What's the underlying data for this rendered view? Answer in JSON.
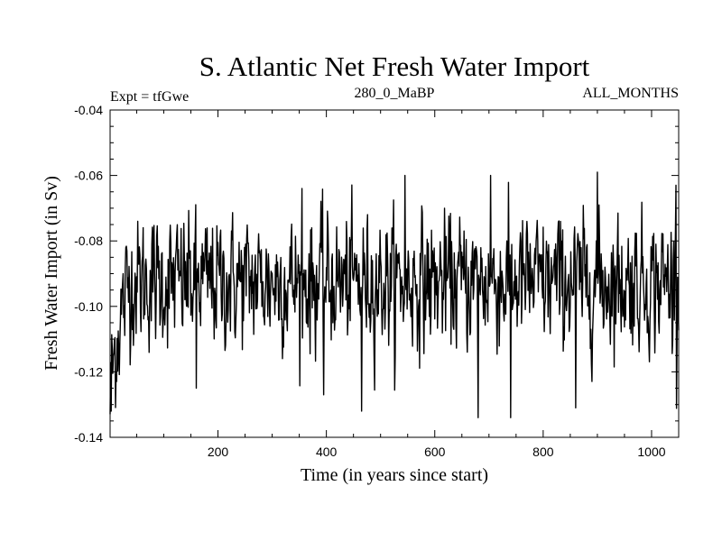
{
  "chart_data": {
    "type": "line",
    "title": "S. Atlantic Net Fresh Water Import",
    "left_label": "Expt = tfGwe",
    "center_label": "280_0_MaBP",
    "right_label": "ALL_MONTHS",
    "xlabel": "Time (in years since start)",
    "ylabel": "Fresh Water Import (in Sv)",
    "xlim": [
      1,
      1050
    ],
    "ylim": [
      -0.14,
      -0.04
    ],
    "xticks": [
      200,
      400,
      600,
      800,
      1000
    ],
    "xtick_labels": [
      "200",
      "400",
      "600",
      "800",
      "1000"
    ],
    "yticks": [
      -0.14,
      -0.12,
      -0.1,
      -0.08,
      -0.06,
      -0.04
    ],
    "ytick_labels": [
      "-0.14",
      "-0.12",
      "-0.10",
      "-0.08",
      "-0.06",
      "-0.04"
    ],
    "grid": false,
    "series": [
      {
        "name": "net fresh water import",
        "color": "#000000",
        "x_start": 1,
        "x_step": 1,
        "baseline": -0.0925,
        "noise_sd": 0.0095,
        "startup_value": -0.13,
        "startup_years": 35,
        "min": -0.134,
        "max": -0.059,
        "anomalies": [
          {
            "x": 3,
            "y": -0.132
          },
          {
            "x": 160,
            "y": -0.125
          },
          {
            "x": 355,
            "y": -0.064
          },
          {
            "x": 395,
            "y": -0.127
          },
          {
            "x": 465,
            "y": -0.132
          },
          {
            "x": 545,
            "y": -0.06
          },
          {
            "x": 680,
            "y": -0.134
          },
          {
            "x": 703,
            "y": -0.06
          },
          {
            "x": 740,
            "y": -0.134
          },
          {
            "x": 860,
            "y": -0.131
          },
          {
            "x": 900,
            "y": -0.059
          },
          {
            "x": 1045,
            "y": -0.063
          }
        ]
      }
    ]
  }
}
